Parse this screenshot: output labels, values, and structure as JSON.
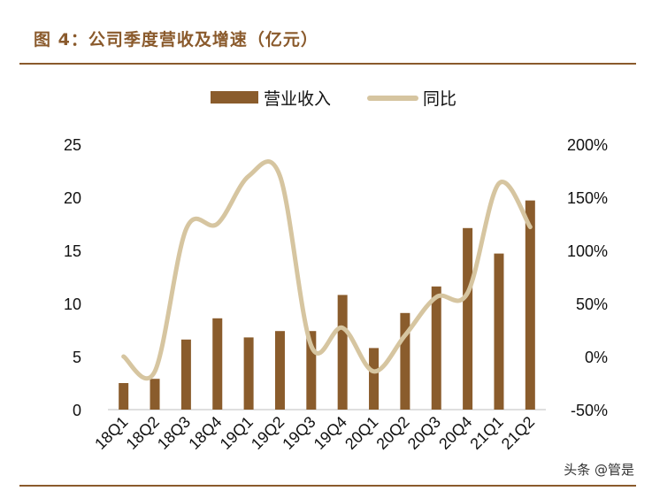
{
  "header": {
    "title": "图 4：公司季度营收及增速（亿元）"
  },
  "watermark": "头条 @管是",
  "colors": {
    "bar": "#8a5c2c",
    "line": "#d6c5a0",
    "rule": "#8a5a2c"
  },
  "chart_data": {
    "type": "bar",
    "categories": [
      "18Q1",
      "18Q2",
      "18Q3",
      "18Q4",
      "19Q1",
      "19Q2",
      "19Q3",
      "19Q4",
      "20Q1",
      "20Q2",
      "20Q3",
      "20Q4",
      "21Q1",
      "21Q2"
    ],
    "series": [
      {
        "name": "营业收入",
        "type": "bar",
        "axis": "left",
        "values": [
          2.5,
          2.9,
          6.6,
          8.6,
          6.8,
          7.4,
          7.4,
          10.8,
          5.8,
          9.1,
          11.6,
          17.1,
          14.7,
          19.7
        ]
      },
      {
        "name": "同比",
        "type": "line",
        "axis": "right",
        "values": [
          0,
          -14,
          120,
          125,
          170,
          170,
          10,
          27,
          -14,
          20,
          56,
          60,
          163,
          122
        ]
      }
    ],
    "left_axis": {
      "range": [
        0,
        25
      ],
      "ticks": [
        "0",
        "5",
        "10",
        "15",
        "20",
        "25"
      ]
    },
    "right_axis": {
      "range": [
        -50,
        200
      ],
      "ticks": [
        "-50%",
        "0%",
        "50%",
        "100%",
        "150%",
        "200%"
      ]
    },
    "grid": false,
    "legend": "top-center"
  }
}
